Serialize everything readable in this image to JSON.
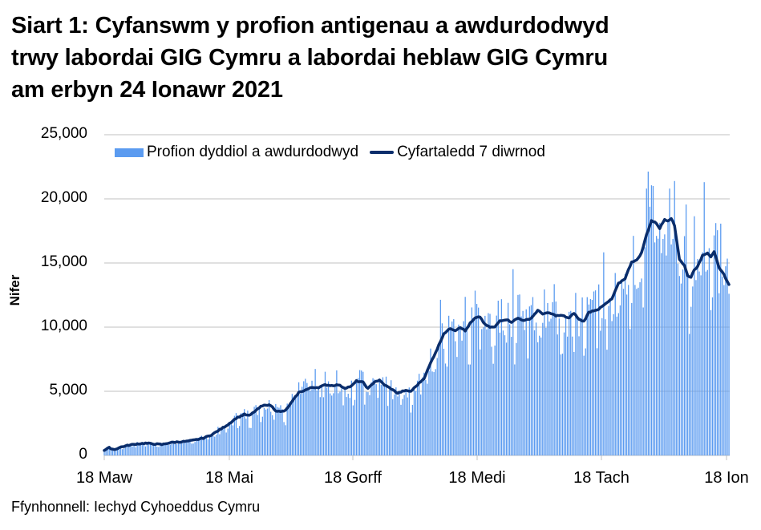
{
  "title_lines": [
    "Siart 1: Cyfanswm y profion antigenau a awdurdodwyd",
    "trwy labordai GIG Cymru a labordai heblaw GIG Cymru",
    "am erbyn 24 Ionawr 2021"
  ],
  "source": "Ffynhonnell: Iechyd Cyhoeddus Cymru",
  "colors": {
    "bars": "#5B9BF0",
    "line": "#0A2D6B",
    "grid": "#C0C0C0"
  },
  "chart_data": {
    "type": "bar",
    "title": "Siart 1: Cyfanswm y profion antigenau a awdurdodwyd trwy labordai GIG Cymru a labordai heblaw GIG Cymru am erbyn 24 Ionawr 2021",
    "xlabel": "",
    "ylabel": "Nifer",
    "ylim": [
      0,
      25000
    ],
    "yticks": [
      0,
      5000,
      10000,
      15000,
      20000,
      25000
    ],
    "ytick_labels": [
      "0",
      "5,000",
      "10,000",
      "15,000",
      "20,000",
      "25,000"
    ],
    "xtick_labels": [
      "18 Maw",
      "18 Mai",
      "18 Gorff",
      "18 Medi",
      "18 Tach",
      "18 Ion"
    ],
    "xtick_day_index": [
      0,
      61,
      122,
      184,
      245,
      306
    ],
    "grid": true,
    "legend_position": "top",
    "legend": [
      "Profion dyddiol a awdurdodwyd",
      "Cyfartaledd 7 diwrnod"
    ],
    "series": [
      {
        "name": "Cyfartaledd 7 diwrnod",
        "type": "line",
        "points_day_value": [
          [
            0,
            400
          ],
          [
            3,
            600
          ],
          [
            6,
            450
          ],
          [
            10,
            650
          ],
          [
            15,
            800
          ],
          [
            20,
            900
          ],
          [
            25,
            950
          ],
          [
            30,
            900
          ],
          [
            35,
            850
          ],
          [
            40,
            1000
          ],
          [
            45,
            1050
          ],
          [
            50,
            1100
          ],
          [
            55,
            1200
          ],
          [
            60,
            1350
          ],
          [
            65,
            1600
          ],
          [
            70,
            2000
          ],
          [
            75,
            2400
          ],
          [
            80,
            2900
          ],
          [
            85,
            3200
          ],
          [
            88,
            3100
          ],
          [
            92,
            3500
          ],
          [
            95,
            3800
          ],
          [
            98,
            3950
          ],
          [
            101,
            3900
          ],
          [
            104,
            3500
          ],
          [
            107,
            3400
          ],
          [
            110,
            3500
          ],
          [
            114,
            4200
          ],
          [
            118,
            4900
          ],
          [
            122,
            5100
          ],
          [
            126,
            5300
          ],
          [
            130,
            5300
          ],
          [
            134,
            5500
          ],
          [
            138,
            5450
          ],
          [
            142,
            5500
          ],
          [
            146,
            5250
          ],
          [
            150,
            5400
          ],
          [
            153,
            5800
          ],
          [
            157,
            5700
          ],
          [
            160,
            5200
          ],
          [
            164,
            5750
          ],
          [
            167,
            5850
          ],
          [
            170,
            5500
          ],
          [
            174,
            5200
          ],
          [
            178,
            4850
          ],
          [
            182,
            5050
          ],
          [
            186,
            5000
          ],
          [
            190,
            5500
          ],
          [
            194,
            6000
          ],
          [
            198,
            7200
          ],
          [
            202,
            8300
          ],
          [
            206,
            9500
          ],
          [
            210,
            9900
          ],
          [
            213,
            9750
          ],
          [
            216,
            10000
          ],
          [
            219,
            9700
          ],
          [
            222,
            10300
          ],
          [
            225,
            10700
          ],
          [
            228,
            10800
          ],
          [
            231,
            10200
          ],
          [
            234,
            10000
          ],
          [
            237,
            10000
          ],
          [
            240,
            10500
          ],
          [
            244,
            10600
          ],
          [
            247,
            10400
          ],
          [
            251,
            10700
          ],
          [
            255,
            10500
          ],
          [
            259,
            10700
          ],
          [
            263,
            11300
          ],
          [
            266,
            11050
          ],
          [
            270,
            11100
          ],
          [
            274,
            10900
          ],
          [
            278,
            10900
          ],
          [
            282,
            10700
          ],
          [
            285,
            11100
          ],
          [
            288,
            10600
          ],
          [
            291,
            10450
          ],
          [
            294,
            11150
          ],
          [
            297,
            11300
          ],
          [
            300,
            11400
          ],
          [
            304,
            11800
          ],
          [
            308,
            12200
          ],
          [
            312,
            13400
          ],
          [
            316,
            13800
          ],
          [
            320,
            15100
          ],
          [
            323,
            15200
          ],
          [
            326,
            15800
          ],
          [
            329,
            17200
          ],
          [
            332,
            18300
          ],
          [
            335,
            18100
          ],
          [
            337,
            17700
          ],
          [
            340,
            18400
          ],
          [
            342,
            18300
          ],
          [
            344,
            18500
          ],
          [
            346,
            17900
          ],
          [
            349,
            15300
          ],
          [
            352,
            14800
          ],
          [
            354,
            14000
          ],
          [
            356,
            13900
          ],
          [
            358,
            14500
          ],
          [
            360,
            14700
          ],
          [
            363,
            15600
          ],
          [
            366,
            15800
          ],
          [
            368,
            15500
          ],
          [
            370,
            15900
          ],
          [
            373,
            14600
          ],
          [
            376,
            14100
          ],
          [
            379,
            13300
          ]
        ]
      },
      {
        "name": "Profion dyddiol a awdurdodwyd",
        "type": "bar",
        "generated_from": "average with daily variance",
        "notable_peaks": [
          {
            "day": 329,
            "value": 20800
          },
          {
            "day": 333,
            "value": 21000
          },
          {
            "day": 343,
            "value": 20800
          },
          {
            "day": 364,
            "value": 21300
          }
        ]
      }
    ]
  }
}
